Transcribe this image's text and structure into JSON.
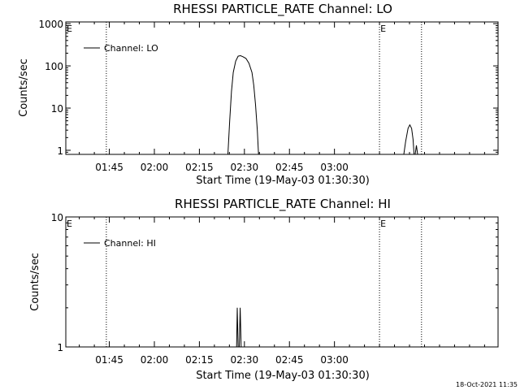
{
  "chart_data": [
    {
      "type": "line",
      "title": "RHESSI PARTICLE_RATE Channel: LO",
      "xlabel": "Start Time (19-May-03 01:30:30)",
      "ylabel": "Counts/sec",
      "x_units": "minutes after 01:30:30",
      "y_scale": "log",
      "ylim": [
        0.8,
        1100
      ],
      "xlim": [
        0,
        144
      ],
      "x_ticks": [
        {
          "x": 14.5,
          "label": "01:45"
        },
        {
          "x": 29.5,
          "label": "02:00"
        },
        {
          "x": 44.5,
          "label": "02:15"
        },
        {
          "x": 59.5,
          "label": "02:30"
        },
        {
          "x": 74.5,
          "label": "02:45"
        },
        {
          "x": 89.5,
          "label": "03:00"
        }
      ],
      "y_ticks": [
        {
          "y": 1,
          "label": "1"
        },
        {
          "y": 10,
          "label": "10"
        },
        {
          "y": 100,
          "label": "100"
        },
        {
          "y": 1000,
          "label": "1000"
        }
      ],
      "legend": {
        "label": "Channel: LO",
        "position": "top-left"
      },
      "markers": [
        {
          "x": 0,
          "label": "E",
          "dotted_line": false
        },
        {
          "x": 13.5,
          "label": "",
          "dotted_line": true
        },
        {
          "x": 104.5,
          "label": "E",
          "dotted_line": true
        },
        {
          "x": 118.5,
          "label": "",
          "dotted_line": true
        }
      ],
      "series": [
        {
          "segments": [
            [
              [
                54.0,
                0.8
              ],
              [
                54.6,
                5
              ],
              [
                55.2,
                25
              ],
              [
                55.8,
                70
              ],
              [
                56.6,
                130
              ],
              [
                57.4,
                170
              ],
              [
                58.2,
                175
              ],
              [
                59.0,
                165
              ],
              [
                60.0,
                150
              ],
              [
                61.0,
                115
              ],
              [
                62.0,
                70
              ],
              [
                62.6,
                35
              ],
              [
                63.2,
                12
              ],
              [
                63.8,
                3
              ],
              [
                64.2,
                0.8
              ]
            ],
            [
              [
                112.6,
                0.8
              ],
              [
                113.2,
                1.6
              ],
              [
                114.0,
                3.3
              ],
              [
                114.6,
                4.0
              ],
              [
                115.2,
                3.3
              ],
              [
                115.7,
                1.8
              ],
              [
                116.0,
                0.8
              ]
            ],
            [
              [
                116.4,
                0.8
              ],
              [
                116.8,
                1.3
              ],
              [
                117.2,
                0.8
              ]
            ]
          ]
        }
      ]
    },
    {
      "type": "line",
      "title": "RHESSI PARTICLE_RATE Channel: HI",
      "xlabel": "Start Time (19-May-03 01:30:30)",
      "ylabel": "Counts/sec",
      "x_units": "minutes after 01:30:30",
      "y_scale": "log",
      "ylim": [
        1,
        10
      ],
      "xlim": [
        0,
        144
      ],
      "x_ticks": [
        {
          "x": 14.5,
          "label": "01:45"
        },
        {
          "x": 29.5,
          "label": "02:00"
        },
        {
          "x": 44.5,
          "label": "02:15"
        },
        {
          "x": 59.5,
          "label": "02:30"
        },
        {
          "x": 74.5,
          "label": "02:45"
        },
        {
          "x": 89.5,
          "label": "03:00"
        }
      ],
      "y_ticks": [
        {
          "y": 1,
          "label": "1"
        },
        {
          "y": 10,
          "label": "10"
        }
      ],
      "legend": {
        "label": "Channel: HI",
        "position": "top-left"
      },
      "markers": [
        {
          "x": 0,
          "label": "E",
          "dotted_line": false
        },
        {
          "x": 13.5,
          "label": "",
          "dotted_line": true
        },
        {
          "x": 104.5,
          "label": "E",
          "dotted_line": true
        },
        {
          "x": 118.5,
          "label": "",
          "dotted_line": true
        }
      ],
      "series": [
        {
          "segments": [
            [
              [
                56.9,
                1
              ],
              [
                57.1,
                2
              ],
              [
                57.4,
                1
              ]
            ],
            [
              [
                57.8,
                1
              ],
              [
                58.1,
                2
              ],
              [
                58.4,
                1
              ]
            ]
          ]
        }
      ]
    }
  ],
  "timestamp": "18-Oct-2021 11:35"
}
